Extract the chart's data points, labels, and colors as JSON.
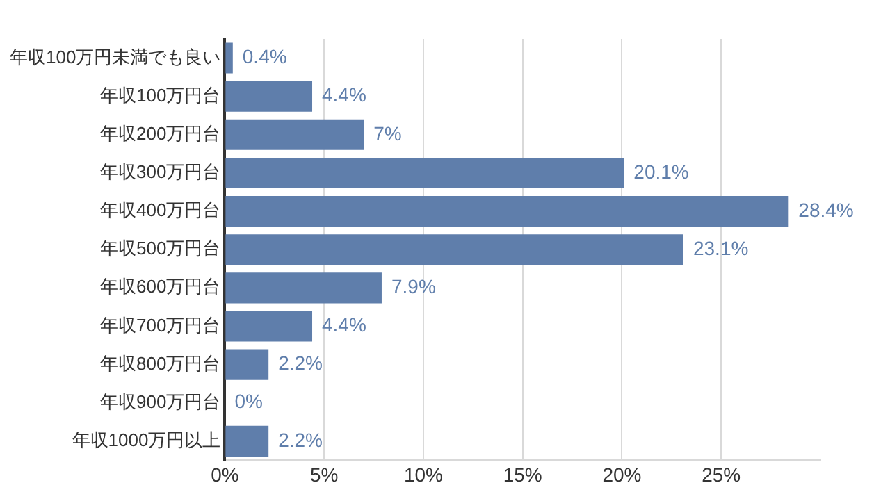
{
  "chart_data": {
    "type": "bar",
    "orientation": "horizontal",
    "categories": [
      "年収100万円未満でも良い",
      "年収100万円台",
      "年収200万円台",
      "年収300万円台",
      "年収400万円台",
      "年収500万円台",
      "年収600万円台",
      "年収700万円台",
      "年収800万円台",
      "年収900万円台",
      "年収1000万円以上"
    ],
    "values": [
      0.4,
      4.4,
      7,
      20.1,
      28.4,
      23.1,
      7.9,
      4.4,
      2.2,
      0,
      2.2
    ],
    "value_labels": [
      "0.4%",
      "4.4%",
      "7%",
      "20.1%",
      "28.4%",
      "23.1%",
      "7.9%",
      "4.4%",
      "2.2%",
      "0%",
      "2.2%"
    ],
    "color": "#5f7eab",
    "xlim": [
      0,
      30
    ],
    "xticks": [
      {
        "value": 0,
        "label": "0%"
      },
      {
        "value": 5,
        "label": "5%"
      },
      {
        "value": 10,
        "label": "10%"
      },
      {
        "value": 15,
        "label": "15%"
      },
      {
        "value": 20,
        "label": "20%"
      },
      {
        "value": 25,
        "label": "25%"
      }
    ],
    "grid": "x",
    "legend": false
  }
}
